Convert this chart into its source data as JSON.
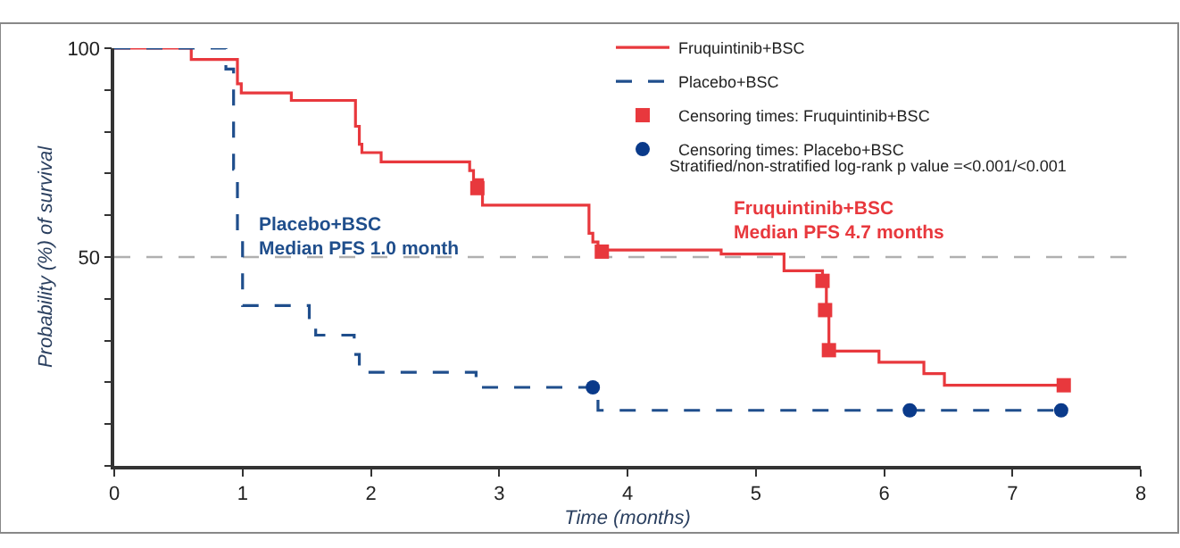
{
  "chart_data": {
    "type": "step",
    "xlabel": "Time (months)",
    "ylabel": "Probability (%) of survival",
    "xlim": [
      0,
      8
    ],
    "xticks": [
      0,
      1,
      2,
      3,
      4,
      5,
      6,
      7,
      8
    ],
    "ylim": [
      0,
      100
    ],
    "yticks": [
      {
        "value": 0,
        "label": null
      },
      {
        "value": 10,
        "label": null
      },
      {
        "value": 20,
        "label": null
      },
      {
        "value": 30,
        "label": null
      },
      {
        "value": 40,
        "label": null
      },
      50,
      {
        "value": 60,
        "label": null
      },
      {
        "value": 70,
        "label": null
      },
      {
        "value": 80,
        "label": null
      },
      {
        "value": 90,
        "label": null
      },
      100
    ],
    "grid": false,
    "legend": "top right",
    "series": [
      {
        "name": "Fruquintinib+BSC",
        "color": "#e8383d",
        "line_style": "solid",
        "marker": "none",
        "x": [
          0,
          0.6,
          0.96,
          0.99,
          1.38,
          1.88,
          1.91,
          1.93,
          2.08,
          2.77,
          2.8,
          2.87,
          3.7,
          3.73,
          3.77,
          4.73,
          5.22,
          5.52,
          5.55,
          5.57,
          5.96,
          6.31,
          6.47,
          7.4
        ],
        "values": [
          100,
          97.3,
          91.5,
          89.3,
          87.5,
          81.3,
          77,
          75,
          72.8,
          70.7,
          68.5,
          62.4,
          55.7,
          53.6,
          51.7,
          50.7,
          46.7,
          44.3,
          37.3,
          27.5,
          24.8,
          22.1,
          19.3,
          19.3
        ]
      },
      {
        "name": "Placebo+BSC",
        "color": "#1f4e8c",
        "line_style": "dashed",
        "marker": "none",
        "x": [
          0,
          0.87,
          0.93,
          0.96,
          1.0,
          1.52,
          1.57,
          1.87,
          1.91,
          2.82,
          3.77,
          7.38
        ],
        "values": [
          100,
          95,
          71,
          55.7,
          38.4,
          35,
          31.3,
          26.7,
          22.4,
          18.8,
          13.3,
          13.3
        ]
      },
      {
        "name": "Censoring times: Fruquintinib+BSC",
        "type": "scatter",
        "color": "#e8383d",
        "marker": "square",
        "x": [
          2.83,
          3.8,
          5.52,
          5.54,
          5.57,
          7.4
        ],
        "values": [
          66.5,
          51.3,
          44.3,
          37.3,
          27.7,
          19.3
        ]
      },
      {
        "name": "Censoring times: Placebo+BSC",
        "type": "scatter",
        "color": "#0a3a8a",
        "marker": "circle",
        "x": [
          3.73,
          6.2,
          7.38
        ],
        "values": [
          18.8,
          13.3,
          13.3
        ]
      }
    ],
    "ref_lines": [
      {
        "axis": "y",
        "value": 50,
        "color": "#b0b0b0",
        "line_style": "dashed"
      }
    ],
    "annotations": [
      {
        "text": "Fruquintinib+BSC\nMedian PFS 4.7 months",
        "x": 4.8,
        "y": 52
      },
      "Placebo+BSC\nMedian PFS 1.0 month",
      "Stratified/non-stratified log-rank p value =<0.001/<0.001"
    ]
  }
}
